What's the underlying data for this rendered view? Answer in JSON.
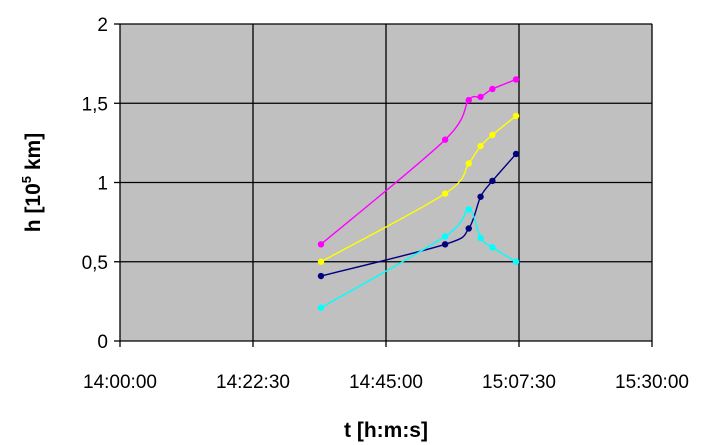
{
  "chart_data": {
    "type": "line",
    "title": "",
    "xlabel": "t [h:m:s]",
    "ylabel": {
      "main": "h [10",
      "sup": "5",
      "tail": " km]"
    },
    "x_ticks": [
      "14:00:00",
      "14:22:30",
      "14:45:00",
      "15:07:30",
      "15:30:00"
    ],
    "y_ticks": [
      "0",
      "0,5",
      "1",
      "1,5",
      "2"
    ],
    "xlim": [
      "14:00:00",
      "15:30:00"
    ],
    "ylim": [
      0,
      2
    ],
    "grid": true,
    "legend": "none",
    "plot_background": "#c0c0c0",
    "series": [
      {
        "color": "#ff00ff",
        "x": [
          "14:34:00",
          "14:55:00",
          "14:59:00",
          "15:01:00",
          "15:03:00",
          "15:07:00"
        ],
        "values": [
          0.61,
          1.27,
          1.52,
          1.54,
          1.59,
          1.65
        ]
      },
      {
        "color": "#ffff00",
        "x": [
          "14:34:00",
          "14:55:00",
          "14:59:00",
          "15:01:00",
          "15:03:00",
          "15:07:00"
        ],
        "values": [
          0.5,
          0.93,
          1.12,
          1.23,
          1.3,
          1.42
        ]
      },
      {
        "color": "#000080",
        "x": [
          "14:34:00",
          "14:55:00",
          "14:59:00",
          "15:01:00",
          "15:03:00",
          "15:07:00"
        ],
        "values": [
          0.41,
          0.61,
          0.71,
          0.91,
          1.01,
          1.18
        ]
      },
      {
        "color": "#00ffff",
        "x": [
          "14:34:00",
          "14:55:00",
          "14:59:00",
          "15:01:00",
          "15:03:00",
          "15:07:00"
        ],
        "values": [
          0.21,
          0.66,
          0.83,
          0.65,
          0.59,
          0.5
        ]
      }
    ]
  }
}
